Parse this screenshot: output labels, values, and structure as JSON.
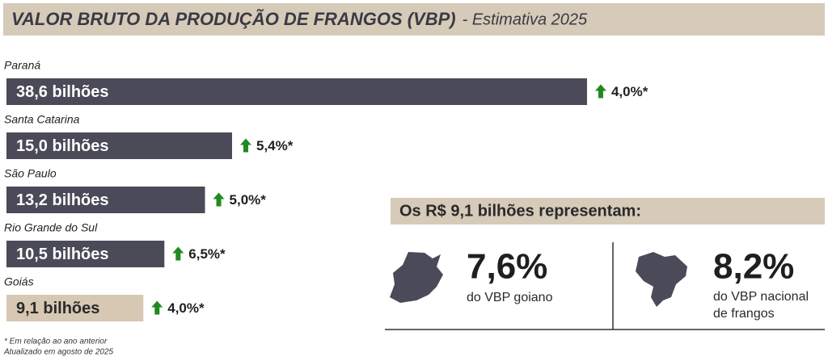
{
  "chart_data": {
    "type": "bar",
    "title": "VALOR BRUTO DA PRODUÇÃO DE FRANGOS (VBP)",
    "subtitle": "- Estimativa 2025",
    "categories": [
      "Paraná",
      "Santa Catarina",
      "São Paulo",
      "Rio Grande do Sul",
      "Goiás"
    ],
    "values": [
      38.6,
      15.0,
      13.2,
      10.5,
      9.1
    ],
    "value_labels": [
      "38,6 bilhões",
      "15,0 bilhões",
      "13,2 bilhões",
      "10,5 bilhões",
      "9,1 bilhões"
    ],
    "change_labels": [
      "4,0%*",
      "5,4%*",
      "5,0%*",
      "6,5%*",
      "4,0%*"
    ],
    "colors": [
      "#4a4a58",
      "#4a4a58",
      "#4a4a58",
      "#4a4a58",
      "#d6c8b3"
    ],
    "footnotes": [
      "* Em relação ao ano anterior",
      "Atualizado em agosto de 2025"
    ],
    "panel": {
      "title": "Os R$ 9,1 bilhões representam:",
      "left_value": "7,6%",
      "left_text": "do VBP goiano",
      "right_value": "8,2%",
      "right_text_lines": [
        "do VBP nacional",
        "de frangos"
      ]
    }
  }
}
